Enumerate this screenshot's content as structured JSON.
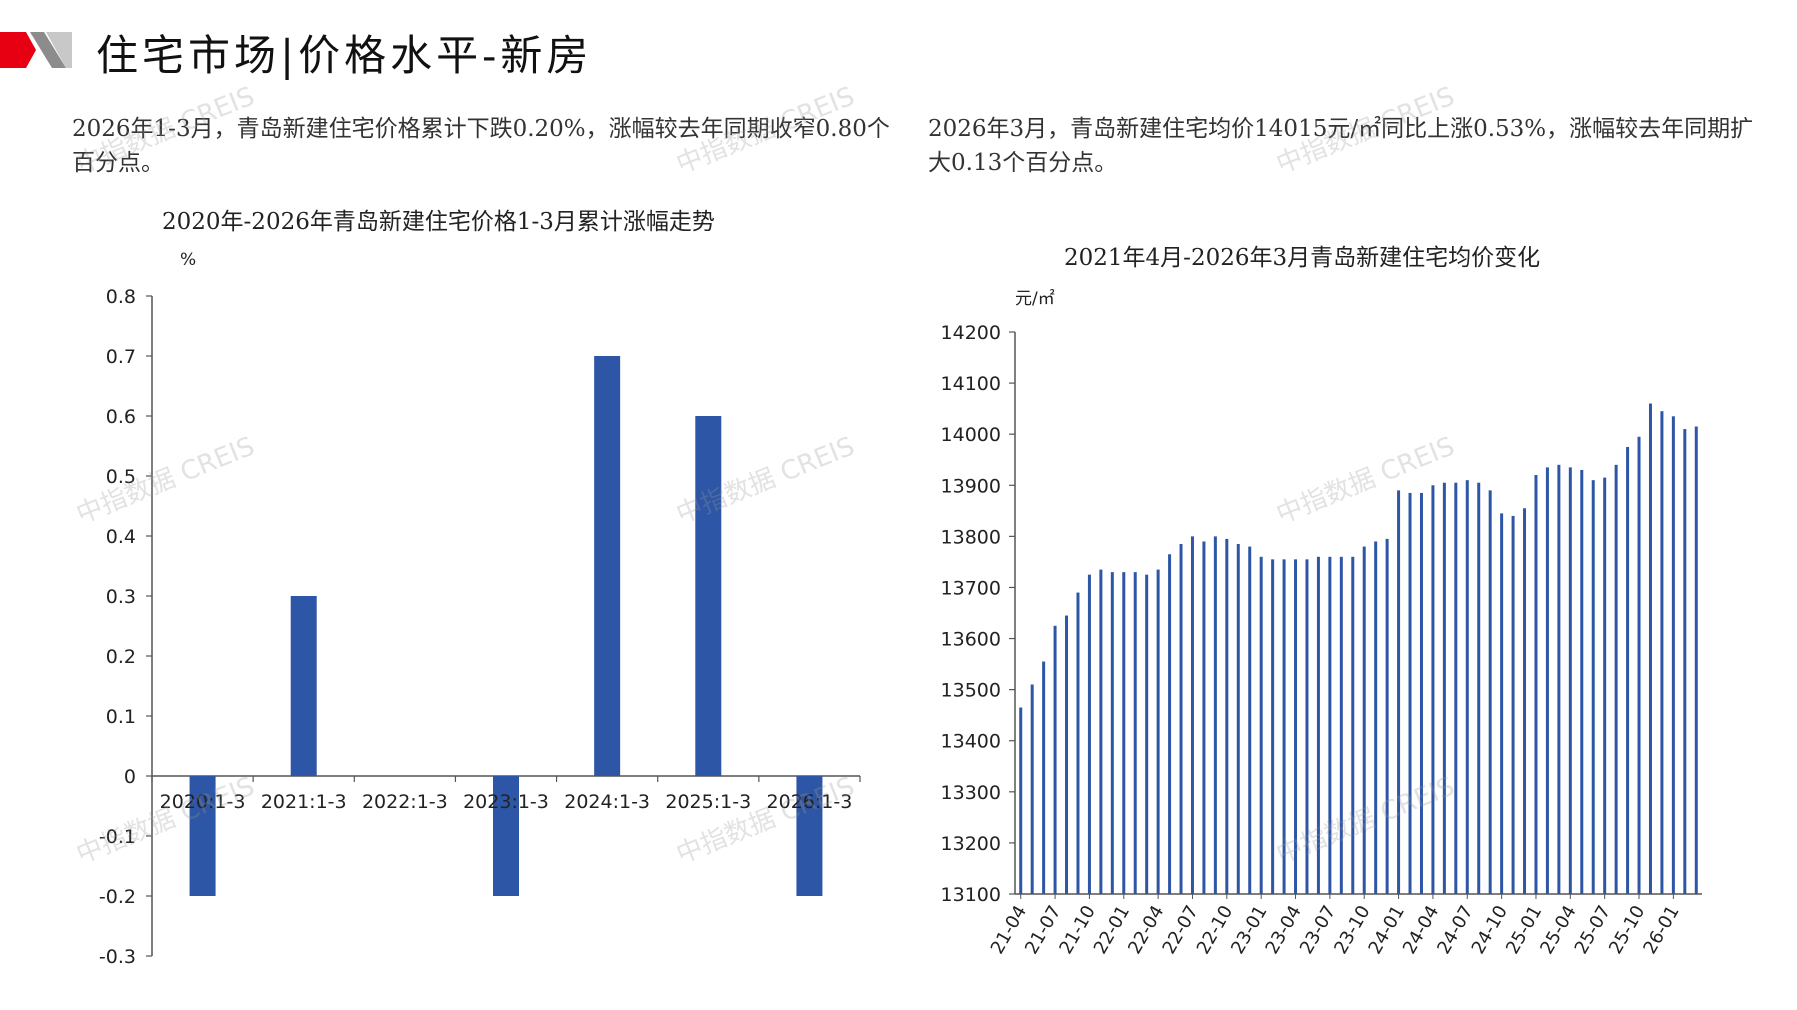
{
  "header": {
    "title": "住宅市场|价格水平-新房",
    "accent_color": "#e60012",
    "mark_gray": "#8c8c8c"
  },
  "left": {
    "description": "2026年1-3月，青岛新建住宅价格累计下跌0.20%，涨幅较去年同期收窄0.80个百分点。",
    "chart_title": "2020年-2026年青岛新建住宅价格1-3月累计涨幅走势",
    "unit": "%"
  },
  "right": {
    "description": "2026年3月，青岛新建住宅均价14015元/㎡同比上涨0.53%，涨幅较去年同期扩大0.13个百分点。",
    "chart_title": "2021年4月-2026年3月青岛新建住宅均价变化",
    "unit": "元/㎡"
  },
  "watermark_text": "中指数据 CREIS",
  "bar_color": "#2e56a6",
  "chart_data": [
    {
      "type": "bar",
      "title": "2020年-2026年青岛新建住宅价格1-3月累计涨幅走势",
      "ylabel": "%",
      "categories": [
        "2020:1-3",
        "2021:1-3",
        "2022:1-3",
        "2023:1-3",
        "2024:1-3",
        "2025:1-3",
        "2026:1-3"
      ],
      "values": [
        -0.2,
        0.3,
        0.0,
        -0.2,
        0.7,
        0.6,
        -0.2
      ],
      "ylim": [
        -0.3,
        0.8
      ],
      "yticks": [
        "0.8",
        "0.7",
        "0.6",
        "0.5",
        "0.4",
        "0.3",
        "0.2",
        "0.1",
        "0",
        "-0.1",
        "-0.2",
        "-0.3"
      ],
      "grid": false
    },
    {
      "type": "bar",
      "title": "2021年4月-2026年3月青岛新建住宅均价变化",
      "ylabel": "元/㎡",
      "ylim": [
        13100,
        14200
      ],
      "yticks": [
        "14200",
        "14100",
        "14000",
        "13900",
        "13800",
        "13700",
        "13600",
        "13500",
        "13400",
        "13300",
        "13200",
        "13100"
      ],
      "xtick_labels": [
        "21-04",
        "21-07",
        "21-10",
        "22-01",
        "22-04",
        "22-07",
        "22-10",
        "23-01",
        "23-04",
        "23-07",
        "23-10",
        "24-01",
        "24-04",
        "24-07",
        "24-10",
        "25-01",
        "25-04",
        "25-07",
        "25-10",
        "26-01"
      ],
      "categories": [
        "21-04",
        "21-05",
        "21-06",
        "21-07",
        "21-08",
        "21-09",
        "21-10",
        "21-11",
        "21-12",
        "22-01",
        "22-02",
        "22-03",
        "22-04",
        "22-05",
        "22-06",
        "22-07",
        "22-08",
        "22-09",
        "22-10",
        "22-11",
        "22-12",
        "23-01",
        "23-02",
        "23-03",
        "23-04",
        "23-05",
        "23-06",
        "23-07",
        "23-08",
        "23-09",
        "23-10",
        "23-11",
        "23-12",
        "24-01",
        "24-02",
        "24-03",
        "24-04",
        "24-05",
        "24-06",
        "24-07",
        "24-08",
        "24-09",
        "24-10",
        "24-11",
        "24-12",
        "25-01",
        "25-02",
        "25-03",
        "25-04",
        "25-05",
        "25-06",
        "25-07",
        "25-08",
        "25-09",
        "25-10",
        "25-11",
        "25-12",
        "26-01",
        "26-02",
        "26-03"
      ],
      "values": [
        13465,
        13510,
        13555,
        13625,
        13645,
        13690,
        13725,
        13735,
        13730,
        13730,
        13730,
        13725,
        13735,
        13765,
        13785,
        13800,
        13790,
        13800,
        13795,
        13785,
        13780,
        13760,
        13755,
        13755,
        13755,
        13755,
        13760,
        13760,
        13760,
        13760,
        13780,
        13790,
        13795,
        13890,
        13885,
        13885,
        13900,
        13905,
        13905,
        13910,
        13905,
        13890,
        13845,
        13840,
        13855,
        13920,
        13935,
        13940,
        13935,
        13930,
        13910,
        13915,
        13940,
        13975,
        13995,
        14060,
        14045,
        14035,
        14010,
        14015
      ],
      "grid": false
    }
  ]
}
